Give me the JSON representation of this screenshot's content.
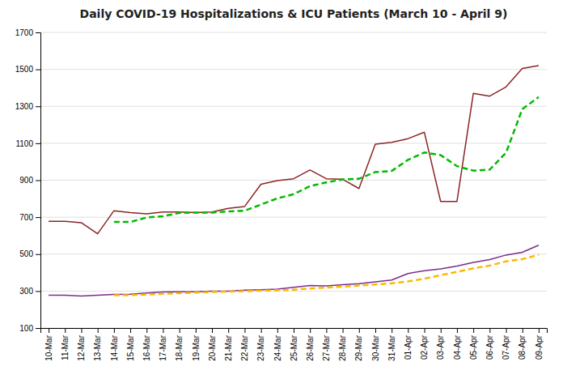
{
  "chart_data": {
    "type": "line",
    "title": "Daily COVID-19 Hospitalizations & ICU Patients (March 10 - April 9)",
    "categories": [
      "10-Mar",
      "11-Mar",
      "12-Mar",
      "13-Mar",
      "14-Mar",
      "15-Mar",
      "16-Mar",
      "17-Mar",
      "18-Mar",
      "19-Mar",
      "20-Mar",
      "21-Mar",
      "22-Mar",
      "23-Mar",
      "24-Mar",
      "25-Mar",
      "26-Mar",
      "27-Mar",
      "28-Mar",
      "29-Mar",
      "30-Mar",
      "31-Mar",
      "01-Apr",
      "02-Apr",
      "03-Apr",
      "04-Apr",
      "05-Apr",
      "06-Apr",
      "07-Apr",
      "08-Apr",
      "09-Apr"
    ],
    "series": [
      {
        "color": "#8B2525",
        "line_style": "solid",
        "values": [
          677,
          677,
          670,
          610,
          735,
          725,
          718,
          728,
          728,
          725,
          728,
          748,
          758,
          878,
          898,
          908,
          955,
          908,
          905,
          855,
          1095,
          1105,
          1125,
          1160,
          785,
          785,
          1370,
          1355,
          1405,
          1505,
          1520
        ]
      },
      {
        "color": "#00BB00",
        "line_style": "dashed",
        "values": [
          null,
          null,
          null,
          null,
          674,
          674,
          698,
          705,
          723,
          725,
          725,
          731,
          735,
          768,
          802,
          824,
          868,
          888,
          904,
          908,
          944,
          950,
          1010,
          1050,
          1036,
          976,
          952,
          957,
          1048,
          1285,
          1350
        ]
      },
      {
        "color": "#7B2D8B",
        "line_style": "solid",
        "values": [
          277,
          277,
          273,
          277,
          282,
          283,
          290,
          295,
          296,
          296,
          300,
          300,
          305,
          307,
          310,
          320,
          330,
          328,
          334,
          340,
          350,
          360,
          395,
          410,
          420,
          435,
          455,
          470,
          495,
          510,
          548
        ]
      },
      {
        "color": "#FFB800",
        "line_style": "dashed",
        "values": [
          null,
          null,
          null,
          null,
          277,
          278,
          281,
          285,
          289,
          292,
          295,
          297,
          299,
          302,
          304,
          307,
          314,
          319,
          324,
          330,
          336,
          342,
          352,
          367,
          386,
          404,
          423,
          438,
          461,
          473,
          496
        ]
      }
    ],
    "ylim": [
      100,
      1700
    ],
    "yticks": [
      100,
      300,
      500,
      700,
      900,
      1100,
      1300,
      1500,
      1700
    ],
    "grid": true
  }
}
